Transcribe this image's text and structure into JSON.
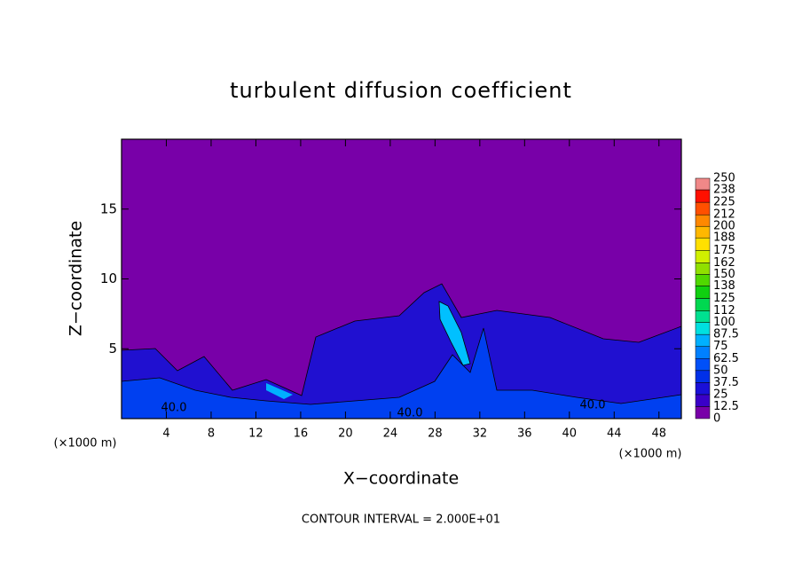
{
  "chart_data": {
    "type": "contour",
    "title": "turbulent diffusion coefficient",
    "x_label": "X−coordinate",
    "y_label": "Z−coordinate",
    "x_unit": "(×1000 m)",
    "xlim": [
      0,
      50
    ],
    "ylim": [
      0,
      20
    ],
    "xticks": [
      4,
      8,
      12,
      16,
      20,
      24,
      28,
      32,
      36,
      40,
      44,
      48
    ],
    "yticks": [
      5,
      10,
      15
    ],
    "annotation": "CONTOUR INTERVAL = 2.000E+01",
    "contour_labels": [
      "40.0",
      "40.0",
      "40.0"
    ],
    "colorbar_levels": [
      0,
      12.5,
      25,
      37.5,
      50,
      62.5,
      75,
      87.5,
      100,
      112,
      125,
      138,
      150,
      162,
      175,
      188,
      200,
      212,
      225,
      238,
      250
    ],
    "colorbar_colors": [
      "#7800a8",
      "#3a00c8",
      "#1a10d8",
      "#0030e8",
      "#0050f8",
      "#0080ff",
      "#00b0ff",
      "#00e0e0",
      "#00e090",
      "#00d850",
      "#10d010",
      "#50d800",
      "#90e000",
      "#d0f000",
      "#ffe000",
      "#ffb800",
      "#ff8800",
      "#ff5000",
      "#ff1000",
      "#f08888"
    ]
  }
}
